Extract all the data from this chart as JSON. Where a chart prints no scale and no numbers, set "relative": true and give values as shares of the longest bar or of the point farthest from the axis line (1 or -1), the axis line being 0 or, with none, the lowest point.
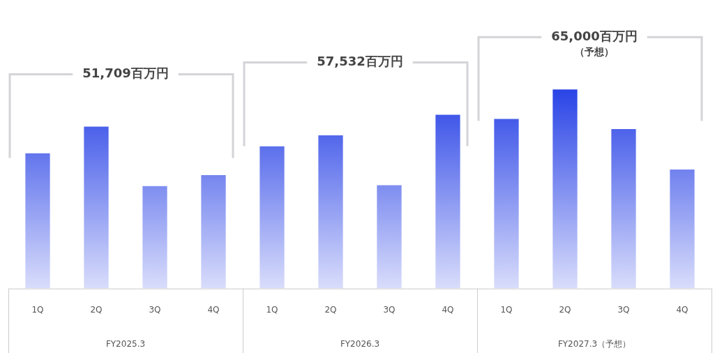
{
  "chart_data": {
    "type": "bar",
    "relative": true,
    "categories": [
      "1Q",
      "2Q",
      "3Q",
      "4Q",
      "1Q",
      "2Q",
      "3Q",
      "4Q",
      "1Q",
      "2Q",
      "3Q",
      "4Q"
    ],
    "values": [
      0.68,
      0.814,
      0.515,
      0.57,
      0.715,
      0.77,
      0.519,
      0.873,
      0.852,
      1,
      0.801,
      0.598
    ],
    "color": "#2a44e6",
    "annotations": [
      "51,709百万円",
      "57,532百万円",
      "65,000百万円（予想）",
      "FY2025.3",
      "FY2026.3",
      "FY2027.3（予想）"
    ],
    "legend": false,
    "grid": false
  }
}
